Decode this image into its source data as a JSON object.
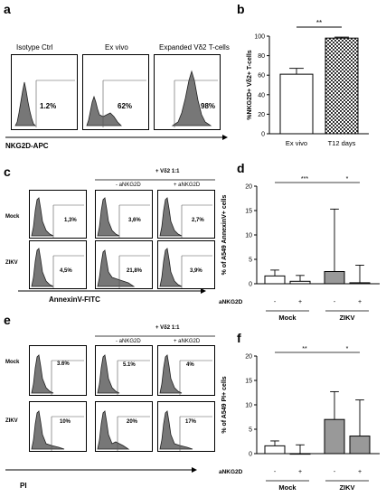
{
  "panel_a": {
    "letter": "a",
    "titles": [
      "Isotype Ctrl",
      "Ex vivo",
      "Expanded Vδ2 T-cells"
    ],
    "percents": [
      "1.2%",
      "62%",
      "98%"
    ],
    "axis_label": "NKG2D-APC"
  },
  "panel_c": {
    "letter": "c",
    "header": "+ Vδ2 1:1",
    "col_labels": [
      "- aNKG2D",
      "+ aNKG2D"
    ],
    "row_labels": [
      "Mock",
      "ZIKV"
    ],
    "percents": [
      [
        "1,3%",
        "3,6%",
        "2,7%"
      ],
      [
        "4,5%",
        "21,8%",
        "3,9%"
      ]
    ],
    "axis_label": "AnnexinV-FITC"
  },
  "panel_e": {
    "letter": "e",
    "header": "+ Vδ2 1:1",
    "col_labels": [
      "- aNKG2D",
      "+ aNKG2D"
    ],
    "row_labels": [
      "Mock",
      "ZIKV"
    ],
    "percents": [
      [
        "3.6%",
        "5.1%",
        "4%"
      ],
      [
        "10%",
        "20%",
        "17%"
      ]
    ],
    "axis_label": "PI"
  },
  "panel_b": {
    "letter": "b",
    "sig": "**"
  },
  "panel_d": {
    "letter": "d",
    "sig": [
      "***",
      "*"
    ],
    "treatment_label": "aNKG2D",
    "signs": [
      "-",
      "+",
      "-",
      "+"
    ],
    "groups": [
      "Mock",
      "ZIKV"
    ]
  },
  "panel_f": {
    "letter": "f",
    "sig": [
      "**",
      "*"
    ],
    "treatment_label": "aNKG2D",
    "signs": [
      "-",
      "+",
      "-",
      "+"
    ],
    "groups": [
      "Mock",
      "ZIKV"
    ]
  },
  "chart_data": [
    {
      "type": "bar",
      "id": "b",
      "categories": [
        "Ex vivo",
        "T12 days"
      ],
      "values": [
        61,
        98
      ],
      "errors": [
        6,
        1
      ],
      "ylabel": "%NKG2D+ Vδ2+ T-cells",
      "ylim": [
        0,
        100
      ],
      "yticks": [
        0,
        20,
        40,
        60,
        80,
        100
      ]
    },
    {
      "type": "bar",
      "id": "d",
      "categories": [
        "-",
        "+",
        "-",
        "+"
      ],
      "groups": [
        "Mock",
        "ZIKV"
      ],
      "values": [
        1.6,
        0.5,
        2.5,
        0.2
      ],
      "errors": [
        1.2,
        1.2,
        12.8,
        3.6
      ],
      "ylabel": "% of A549 AnnexinV+ cells",
      "ylim": [
        0,
        20
      ],
      "yticks": [
        0,
        5,
        10,
        15,
        20
      ]
    },
    {
      "type": "bar",
      "id": "f",
      "categories": [
        "-",
        "+",
        "-",
        "+"
      ],
      "groups": [
        "Mock",
        "ZIKV"
      ],
      "values": [
        1.6,
        0.0,
        7.0,
        3.6
      ],
      "errors": [
        1.0,
        1.8,
        5.7,
        7.4
      ],
      "ylabel": "% of A549 PI+ cells",
      "ylim": [
        0,
        20
      ],
      "yticks": [
        0,
        5,
        10,
        15,
        20
      ]
    }
  ]
}
